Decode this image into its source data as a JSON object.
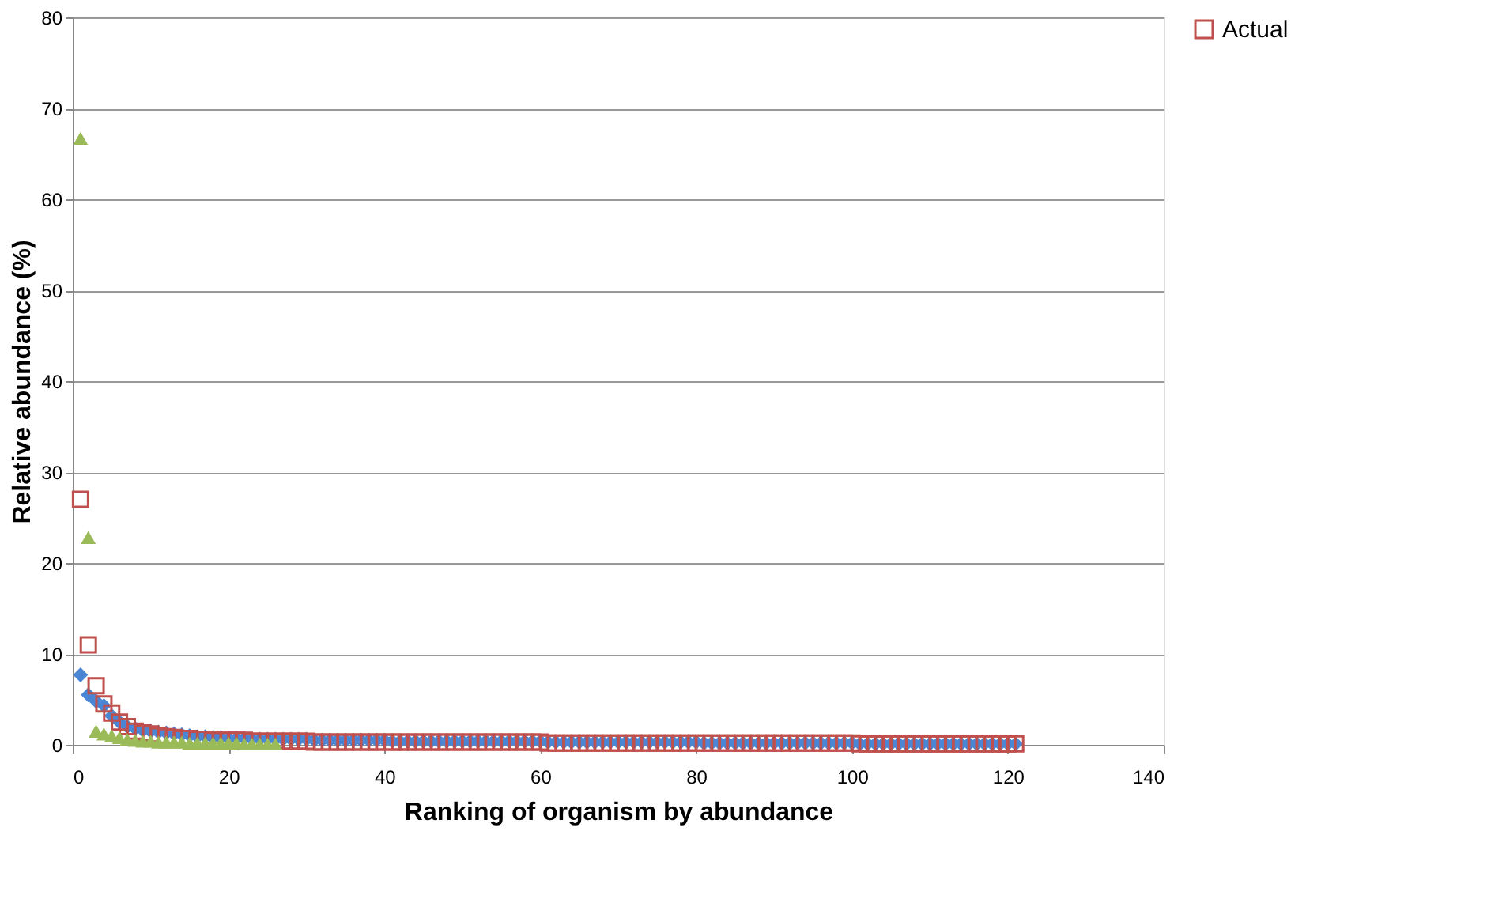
{
  "chart_data": {
    "type": "scatter",
    "xlabel": "Ranking of organism by abundance",
    "ylabel": "Relative abundance (%)",
    "xlim": [
      0,
      140
    ],
    "xticks": [
      0,
      20,
      40,
      60,
      80,
      100,
      120,
      140
    ],
    "ylim": [
      0,
      80
    ],
    "yticks": [
      0,
      10,
      20,
      30,
      40,
      50,
      60,
      70,
      80
    ],
    "grid": "y",
    "legend": "right",
    "x": [
      1,
      2,
      3,
      4,
      5,
      6,
      7,
      8,
      9,
      10,
      11,
      12,
      13,
      14,
      15,
      16,
      17,
      18,
      19,
      20,
      21,
      22,
      23,
      24,
      25,
      26,
      27,
      28,
      29,
      30,
      31,
      32,
      33,
      34,
      35,
      36,
      37,
      38,
      39,
      40,
      41,
      42,
      43,
      44,
      45,
      46,
      47,
      48,
      49,
      50,
      51,
      52,
      53,
      54,
      55,
      56,
      57,
      58,
      59,
      60,
      61,
      62,
      63,
      64,
      65,
      66,
      67,
      68,
      69,
      70,
      71,
      72,
      73,
      74,
      75,
      76,
      77,
      78,
      79,
      80,
      81,
      82,
      83,
      84,
      85,
      86,
      87,
      88,
      89,
      90,
      91,
      92,
      93,
      94,
      95,
      96,
      97,
      98,
      99,
      100,
      101,
      102,
      103,
      104,
      105,
      106,
      107,
      108,
      109,
      110,
      111,
      112,
      113,
      114,
      115,
      116,
      117,
      118,
      119,
      120,
      121
    ],
    "series": [
      {
        "color": "#4a86d4",
        "marker": "diamond",
        "values": [
          7.7,
          5.5,
          4.8,
          4.3,
          3.2,
          2.5,
          2.0,
          1.8,
          1.6,
          1.5,
          1.4,
          1.3,
          1.2,
          1.1,
          1.0,
          0.9,
          0.9,
          0.8,
          0.8,
          0.7,
          0.7,
          0.7,
          0.6,
          0.6,
          0.6,
          0.6,
          0.6,
          0.6,
          0.6,
          0.6,
          0.5,
          0.5,
          0.5,
          0.5,
          0.5,
          0.5,
          0.5,
          0.5,
          0.5,
          0.5,
          0.4,
          0.4,
          0.4,
          0.4,
          0.4,
          0.4,
          0.4,
          0.4,
          0.4,
          0.4,
          0.4,
          0.4,
          0.4,
          0.4,
          0.4,
          0.4,
          0.4,
          0.4,
          0.4,
          0.4,
          0.3,
          0.3,
          0.3,
          0.3,
          0.3,
          0.3,
          0.3,
          0.3,
          0.3,
          0.3,
          0.3,
          0.3,
          0.3,
          0.3,
          0.3,
          0.3,
          0.3,
          0.3,
          0.3,
          0.3,
          0.2,
          0.2,
          0.2,
          0.2,
          0.2,
          0.2,
          0.2,
          0.2,
          0.2,
          0.2,
          0.2,
          0.2,
          0.2,
          0.2,
          0.2,
          0.2,
          0.2,
          0.2,
          0.2,
          0.2,
          0.1,
          0.1,
          0.1,
          0.1,
          0.1,
          0.1,
          0.1,
          0.1,
          0.1,
          0.1,
          0.1,
          0.1,
          0.1,
          0.1,
          0.1,
          0.1,
          0.1,
          0.1,
          0.1,
          0.1,
          0.1
        ]
      },
      {
        "name": "Actual",
        "color": "#c0504d",
        "marker": "square",
        "values": [
          27,
          11,
          6.5,
          4.5,
          3.5,
          2.5,
          2.0,
          1.5,
          1.3,
          1.2,
          1.0,
          0.9,
          0.8,
          0.7,
          0.7,
          0.6,
          0.6,
          0.5,
          0.5,
          0.5,
          0.5,
          0.5,
          0.4,
          0.4,
          0.4,
          0.4,
          0.4,
          0.4,
          0.4,
          0.4,
          0.3,
          0.3,
          0.3,
          0.3,
          0.3,
          0.3,
          0.3,
          0.3,
          0.3,
          0.3,
          0.3,
          0.3,
          0.3,
          0.3,
          0.3,
          0.3,
          0.3,
          0.3,
          0.3,
          0.3,
          0.3,
          0.3,
          0.3,
          0.3,
          0.3,
          0.3,
          0.3,
          0.3,
          0.3,
          0.3,
          0.2,
          0.2,
          0.2,
          0.2,
          0.2,
          0.2,
          0.2,
          0.2,
          0.2,
          0.2,
          0.2,
          0.2,
          0.2,
          0.2,
          0.2,
          0.2,
          0.2,
          0.2,
          0.2,
          0.2,
          0.2,
          0.2,
          0.2,
          0.2,
          0.2,
          0.2,
          0.2,
          0.2,
          0.2,
          0.2,
          0.2,
          0.2,
          0.2,
          0.2,
          0.2,
          0.2,
          0.2,
          0.2,
          0.2,
          0.2,
          0.1,
          0.1,
          0.1,
          0.1,
          0.1,
          0.1,
          0.1,
          0.1,
          0.1,
          0.1,
          0.1,
          0.1,
          0.1,
          0.1,
          0.1,
          0.1,
          0.1,
          0.1,
          0.1,
          0.1,
          0.1
        ]
      },
      {
        "color": "#9bbb59",
        "marker": "triangle",
        "x": [
          1,
          2,
          3,
          4,
          5,
          6,
          7,
          8,
          9,
          10,
          11,
          12,
          13,
          14,
          15,
          16,
          17,
          18,
          19,
          20,
          21,
          22,
          23,
          24,
          25,
          26
        ],
        "values": [
          66.7,
          22.8,
          1.5,
          1.2,
          1.0,
          0.8,
          0.6,
          0.5,
          0.4,
          0.4,
          0.3,
          0.3,
          0.3,
          0.3,
          0.2,
          0.2,
          0.2,
          0.2,
          0.2,
          0.2,
          0.2,
          0.1,
          0.1,
          0.1,
          0.1,
          0.1
        ]
      }
    ]
  }
}
